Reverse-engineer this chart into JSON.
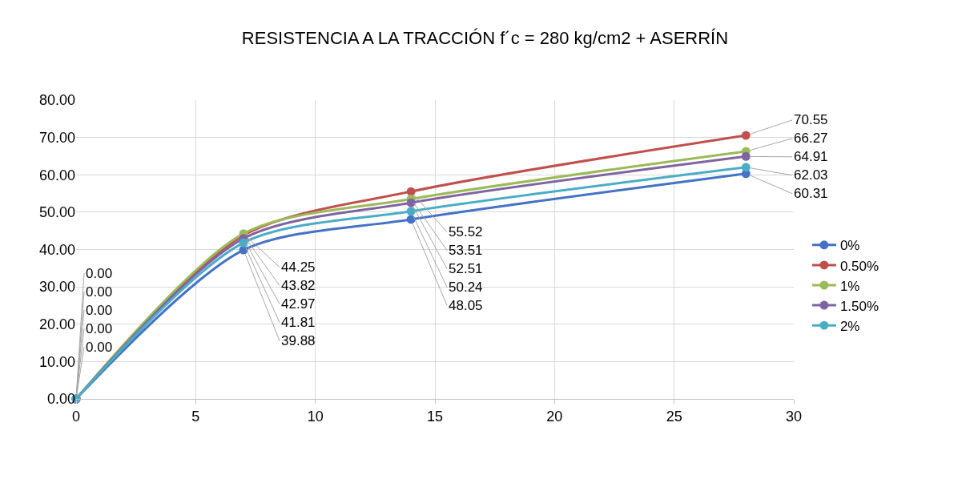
{
  "chart_data": {
    "type": "line",
    "title": "RESISTENCIA A LA TRACCIÓN f´c = 280 kg/cm2 + ASERRÍN",
    "x": [
      0,
      7,
      14,
      28
    ],
    "series": [
      {
        "name": "0%",
        "color": "#4472c4",
        "values": [
          0,
          39.88,
          48.05,
          60.31
        ],
        "value_labels": [
          "0.00",
          "39.88",
          "48.05",
          "60.31"
        ]
      },
      {
        "name": "0.50%",
        "color": "#c0504d",
        "values": [
          0,
          43.82,
          55.52,
          70.55
        ],
        "value_labels": [
          "0.00",
          "43.82",
          "55.52",
          "70.55"
        ]
      },
      {
        "name": "1%",
        "color": "#9bbb59",
        "values": [
          0,
          44.25,
          53.51,
          66.27
        ],
        "value_labels": [
          "0.00",
          "44.25",
          "53.51",
          "66.27"
        ]
      },
      {
        "name": "1.50%",
        "color": "#8064a2",
        "values": [
          0,
          42.97,
          52.51,
          64.91
        ],
        "value_labels": [
          "0.00",
          "42.97",
          "52.51",
          "64.91"
        ]
      },
      {
        "name": "2%",
        "color": "#4bacc6",
        "values": [
          0,
          41.81,
          50.24,
          62.03
        ],
        "value_labels": [
          "0.00",
          "41.81",
          "50.24",
          "62.03"
        ]
      }
    ],
    "xlim": [
      0,
      30
    ],
    "xticks": [
      0,
      5,
      10,
      15,
      20,
      25,
      30
    ],
    "ylim": [
      0,
      80
    ],
    "yticks": [
      {
        "value": 0,
        "label": "0.00"
      },
      {
        "value": 10,
        "label": "10.00"
      },
      {
        "value": 20,
        "label": "20.00"
      },
      {
        "value": 30,
        "label": "30.00"
      },
      {
        "value": 40,
        "label": "40.00"
      },
      {
        "value": 50,
        "label": "50.00"
      },
      {
        "value": 60,
        "label": "60.00"
      },
      {
        "value": 70,
        "label": "70.00"
      },
      {
        "value": 80,
        "label": "80.00"
      }
    ],
    "grid": true,
    "legend": "right",
    "marker": "circle",
    "line_style": "solid"
  }
}
